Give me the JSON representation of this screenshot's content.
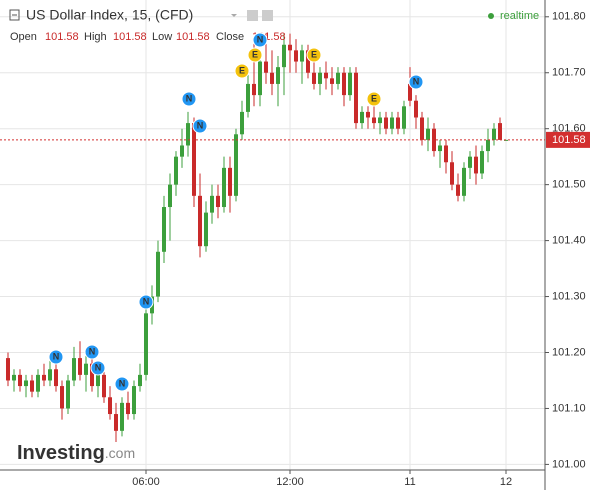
{
  "header": {
    "title": "US Dollar Index, 15, (CFD)",
    "realtime": "realtime",
    "open_label": "Open",
    "high_label": "High",
    "low_label": "Low",
    "close_label": "Close"
  },
  "logo": {
    "name": "Investing",
    "suffix": ".com"
  },
  "events": [
    "N",
    "N",
    "N",
    "N",
    "N",
    "N",
    "N",
    "N",
    "N",
    "E",
    "E",
    "E",
    "E"
  ],
  "chart_data": {
    "type": "candlestick",
    "up_color": "#3c9f3c",
    "down_color": "#c92a2a",
    "grid": true,
    "categories": [
      null,
      null,
      null,
      null,
      null,
      null,
      null,
      null,
      null,
      null,
      null,
      null,
      null,
      null,
      null,
      null,
      null,
      null,
      null,
      null,
      null,
      null,
      null,
      "06:00",
      null,
      null,
      null,
      null,
      null,
      null,
      null,
      null,
      null,
      null,
      null,
      null,
      null,
      null,
      null,
      null,
      null,
      null,
      null,
      null,
      null,
      null,
      null,
      "12:00",
      null,
      null,
      null,
      null,
      null,
      null,
      null,
      null,
      null,
      null,
      null,
      null,
      null,
      null,
      null,
      null,
      null,
      null,
      null,
      "11",
      null,
      null,
      null,
      null,
      null,
      null,
      null,
      null,
      null,
      null,
      null,
      null,
      null,
      null,
      null,
      "12"
    ],
    "open": [
      101.19,
      101.15,
      101.16,
      101.14,
      101.15,
      101.13,
      101.16,
      101.15,
      101.17,
      101.14,
      101.1,
      101.15,
      101.19,
      101.16,
      101.18,
      101.14,
      101.16,
      101.12,
      101.09,
      101.06,
      101.11,
      101.09,
      101.14,
      101.16,
      101.27,
      101.3,
      101.38,
      101.46,
      101.5,
      101.55,
      101.57,
      101.61,
      101.48,
      101.39,
      101.45,
      101.48,
      101.46,
      101.53,
      101.48,
      101.59,
      101.63,
      101.68,
      101.66,
      101.72,
      101.7,
      101.68,
      101.71,
      101.75,
      101.74,
      101.72,
      101.74,
      101.7,
      101.68,
      101.7,
      101.69,
      101.68,
      101.7,
      101.66,
      101.7,
      101.61,
      101.63,
      101.62,
      101.61,
      101.62,
      101.6,
      101.62,
      101.6,
      101.68,
      101.65,
      101.62,
      101.58,
      101.6,
      101.56,
      101.57,
      101.54,
      101.5,
      101.48,
      101.53,
      101.55,
      101.52,
      101.56,
      101.58,
      101.61,
      101.58
    ],
    "high": [
      101.2,
      101.17,
      101.17,
      101.16,
      101.16,
      101.17,
      101.18,
      101.19,
      101.18,
      101.15,
      101.16,
      101.21,
      101.22,
      101.2,
      101.19,
      101.17,
      101.17,
      101.14,
      101.11,
      101.12,
      101.13,
      101.15,
      101.18,
      101.28,
      101.32,
      101.4,
      101.48,
      101.52,
      101.56,
      101.6,
      101.63,
      101.62,
      101.52,
      101.47,
      101.5,
      101.5,
      101.55,
      101.55,
      101.6,
      101.65,
      101.7,
      101.76,
      101.74,
      101.77,
      101.74,
      101.73,
      101.77,
      101.77,
      101.76,
      101.75,
      101.75,
      101.72,
      101.71,
      101.72,
      101.71,
      101.71,
      101.71,
      101.71,
      101.71,
      101.64,
      101.64,
      101.64,
      101.63,
      101.63,
      101.63,
      101.63,
      101.65,
      101.71,
      101.66,
      101.63,
      101.62,
      101.61,
      101.58,
      101.58,
      101.56,
      101.52,
      101.54,
      101.56,
      101.57,
      101.57,
      101.6,
      101.61,
      101.62,
      101.58
    ],
    "low": [
      101.14,
      101.13,
      101.13,
      101.12,
      101.12,
      101.12,
      101.14,
      101.14,
      101.13,
      101.08,
      101.09,
      101.14,
      101.15,
      101.13,
      101.13,
      101.12,
      101.11,
      101.08,
      101.04,
      101.05,
      101.08,
      101.08,
      101.13,
      101.15,
      101.25,
      101.29,
      101.36,
      101.4,
      101.48,
      101.53,
      101.55,
      101.46,
      101.37,
      101.38,
      101.43,
      101.44,
      101.45,
      101.45,
      101.47,
      101.58,
      101.62,
      101.64,
      101.64,
      101.68,
      101.66,
      101.64,
      101.66,
      101.7,
      101.7,
      101.68,
      101.69,
      101.67,
      101.66,
      101.67,
      101.66,
      101.67,
      101.64,
      101.65,
      101.6,
      101.6,
      101.6,
      101.6,
      101.59,
      101.59,
      101.59,
      101.59,
      101.59,
      101.64,
      101.6,
      101.57,
      101.56,
      101.55,
      101.53,
      101.52,
      101.49,
      101.47,
      101.47,
      101.51,
      101.5,
      101.51,
      101.54,
      101.57,
      101.58,
      101.58
    ],
    "close": [
      101.15,
      101.16,
      101.14,
      101.15,
      101.13,
      101.16,
      101.15,
      101.17,
      101.14,
      101.1,
      101.15,
      101.19,
      101.16,
      101.18,
      101.14,
      101.16,
      101.12,
      101.09,
      101.06,
      101.11,
      101.09,
      101.14,
      101.16,
      101.27,
      101.3,
      101.38,
      101.46,
      101.5,
      101.55,
      101.57,
      101.61,
      101.48,
      101.39,
      101.45,
      101.48,
      101.46,
      101.53,
      101.48,
      101.59,
      101.63,
      101.68,
      101.66,
      101.72,
      101.7,
      101.68,
      101.71,
      101.75,
      101.74,
      101.72,
      101.74,
      101.7,
      101.68,
      101.7,
      101.69,
      101.68,
      101.7,
      101.66,
      101.7,
      101.61,
      101.63,
      101.62,
      101.61,
      101.62,
      101.6,
      101.62,
      101.6,
      101.64,
      101.65,
      101.62,
      101.58,
      101.6,
      101.56,
      101.57,
      101.54,
      101.5,
      101.48,
      101.53,
      101.55,
      101.52,
      101.56,
      101.58,
      101.6,
      101.58,
      101.58
    ],
    "ylim": [
      100.99,
      101.83
    ],
    "yticks": [
      {
        "value": 101.0,
        "label": "101.00"
      },
      {
        "value": 101.1,
        "label": "101.10"
      },
      {
        "value": 101.2,
        "label": "101.20"
      },
      {
        "value": 101.3,
        "label": "101.30"
      },
      {
        "value": 101.4,
        "label": "101.40"
      },
      {
        "value": 101.5,
        "label": "101.50"
      },
      {
        "value": 101.6,
        "label": "101.60"
      },
      {
        "value": 101.7,
        "label": "101.70"
      },
      {
        "value": 101.8,
        "label": "101.80"
      }
    ]
  }
}
